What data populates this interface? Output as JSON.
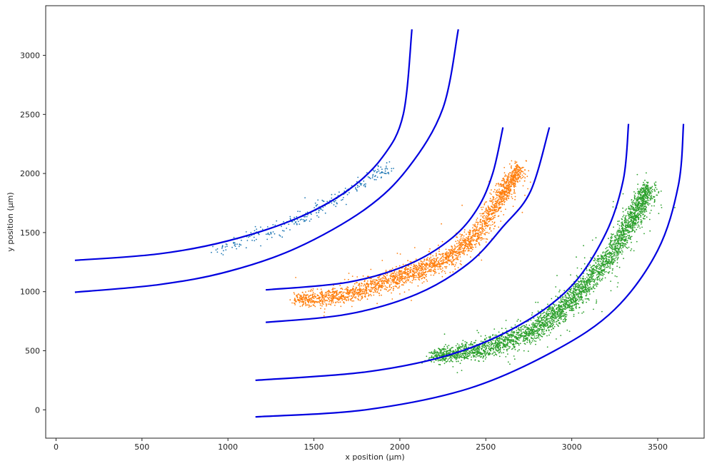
{
  "chart_data": {
    "type": "scatter",
    "xlabel": "x position (μm)",
    "ylabel": "y position (μm)",
    "xlim": [
      -60,
      3770
    ],
    "ylim": [
      -240,
      3420
    ],
    "xticks": [
      0,
      500,
      1000,
      1500,
      2000,
      2500,
      3000,
      3500
    ],
    "yticks": [
      0,
      500,
      1000,
      1500,
      2000,
      2500,
      3000
    ],
    "xtick_labels": [
      "0",
      "500",
      "1000",
      "1500",
      "2000",
      "2500",
      "3000",
      "3500"
    ],
    "ytick_labels": [
      "0",
      "500",
      "1000",
      "1500",
      "2000",
      "2500",
      "3000"
    ],
    "grid": false,
    "curve_color": "#0000e0",
    "curves": [
      {
        "points": [
          [
            110,
            1265
          ],
          [
            600,
            1320
          ],
          [
            1000,
            1430
          ],
          [
            1400,
            1620
          ],
          [
            1700,
            1860
          ],
          [
            1900,
            2140
          ],
          [
            2020,
            2500
          ],
          [
            2070,
            3220
          ]
        ]
      },
      {
        "points": [
          [
            110,
            995
          ],
          [
            600,
            1060
          ],
          [
            1000,
            1170
          ],
          [
            1400,
            1370
          ],
          [
            1800,
            1700
          ],
          [
            2050,
            2050
          ],
          [
            2250,
            2550
          ],
          [
            2340,
            3220
          ]
        ]
      },
      {
        "points": [
          [
            1220,
            1015
          ],
          [
            1700,
            1080
          ],
          [
            2050,
            1230
          ],
          [
            2300,
            1450
          ],
          [
            2450,
            1700
          ],
          [
            2540,
            2000
          ],
          [
            2600,
            2390
          ]
        ]
      },
      {
        "points": [
          [
            1220,
            740
          ],
          [
            1700,
            810
          ],
          [
            2100,
            980
          ],
          [
            2400,
            1240
          ],
          [
            2600,
            1550
          ],
          [
            2760,
            1850
          ],
          [
            2870,
            2390
          ]
        ]
      },
      {
        "points": [
          [
            1160,
            250
          ],
          [
            1800,
            320
          ],
          [
            2300,
            470
          ],
          [
            2700,
            720
          ],
          [
            3000,
            1050
          ],
          [
            3200,
            1500
          ],
          [
            3300,
            1950
          ],
          [
            3330,
            2420
          ]
        ]
      },
      {
        "points": [
          [
            1160,
            -60
          ],
          [
            1800,
            0
          ],
          [
            2400,
            180
          ],
          [
            2900,
            500
          ],
          [
            3250,
            850
          ],
          [
            3500,
            1350
          ],
          [
            3620,
            1900
          ],
          [
            3650,
            2420
          ]
        ]
      }
    ],
    "series": [
      {
        "color": "#1f77b4",
        "bands": [
          [
            950,
            1300,
            1400,
            60
          ],
          [
            1200,
            1440,
            1550,
            55
          ],
          [
            1450,
            1560,
            1690,
            55
          ],
          [
            1700,
            1800,
            1900,
            55
          ],
          [
            1950,
            1950,
            2180,
            55
          ]
        ],
        "count": 280,
        "scatter_spread": 70
      },
      {
        "color": "#ff7f0e",
        "bands": [
          [
            1400,
            900,
            960,
            70
          ],
          [
            1700,
            940,
            1010,
            75
          ],
          [
            2000,
            1080,
            1170,
            80
          ],
          [
            2250,
            1200,
            1300,
            85
          ],
          [
            2450,
            1420,
            1550,
            90
          ],
          [
            2600,
            1760,
            1900,
            90
          ],
          [
            2700,
            2000,
            2100,
            70
          ]
        ],
        "count": 2600,
        "scatter_spread": 90
      },
      {
        "color": "#2ca02c",
        "bands": [
          [
            2200,
            420,
            480,
            60
          ],
          [
            2500,
            480,
            560,
            80
          ],
          [
            2800,
            640,
            720,
            95
          ],
          [
            3000,
            880,
            980,
            100
          ],
          [
            3200,
            1200,
            1300,
            100
          ],
          [
            3350,
            1550,
            1650,
            95
          ],
          [
            3450,
            1800,
            1960,
            80
          ]
        ],
        "count": 3400,
        "scatter_spread": 100
      }
    ]
  }
}
